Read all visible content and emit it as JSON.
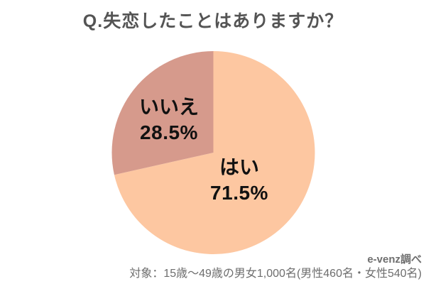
{
  "title": "Q.失恋したことはありますか？",
  "chart_data": {
    "type": "pie",
    "title": "Q.失恋したことはありますか？",
    "categories": [
      "はい",
      "いいえ"
    ],
    "values": [
      71.5,
      28.5
    ],
    "unit": "%",
    "slices": [
      {
        "label": "はい",
        "value": 71.5,
        "display_value": "71.5%",
        "color": "#fdc7a1"
      },
      {
        "label": "いいえ",
        "value": 28.5,
        "display_value": "28.5%",
        "color": "#d69a8c"
      }
    ],
    "start_angle_deg": 0,
    "direction": "clockwise",
    "legend": "none",
    "label_position": "inside"
  },
  "footer": {
    "source": "e-venz調べ",
    "sample_note": "対象：15歳〜49歳の男女1,000名(男性460名・女性540名)"
  },
  "colors": {
    "background": "#ffffff",
    "title_text": "#545454",
    "slice_label_text": "#111111",
    "footer_text": "#6e6e6e",
    "slice_yes": "#fdc7a1",
    "slice_no": "#d69a8c"
  }
}
